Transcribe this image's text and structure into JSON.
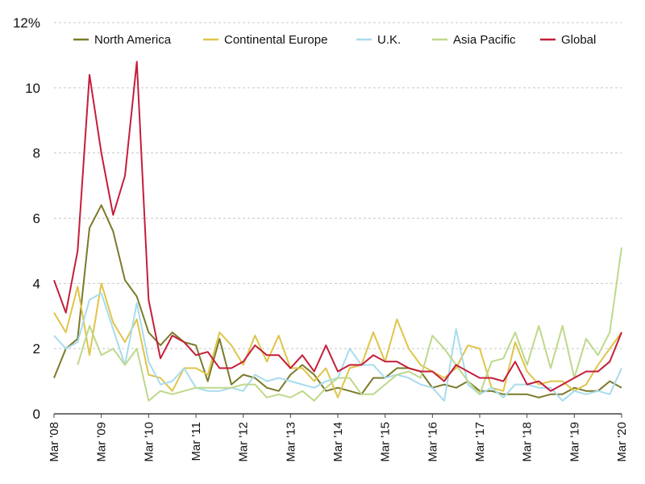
{
  "chart_data": {
    "type": "line",
    "title": "",
    "xlabel": "",
    "ylabel": "",
    "ylim": [
      0,
      12
    ],
    "y_ticks": [
      0,
      2,
      4,
      6,
      8,
      10,
      12
    ],
    "y_tick_labels": [
      "0",
      "2",
      "4",
      "6",
      "8",
      "10",
      "12%"
    ],
    "grid": "horizontal dashed",
    "legend_position": "top",
    "x_tick_labels": [
      "Mar '08",
      "Mar '09",
      "Mar '10",
      "Mar '11",
      "Mar '12",
      "Mar '13",
      "Mar '14",
      "Mar '15",
      "Mar '16",
      "Mar '17",
      "Mar '18",
      "Mar '19",
      "Mar '20"
    ],
    "x_tick_index": [
      0,
      4,
      8,
      12,
      16,
      20,
      24,
      28,
      32,
      36,
      40,
      44,
      48
    ],
    "series": [
      {
        "name": "North America",
        "color": "#7a7a2a",
        "values": [
          1.1,
          2.0,
          2.3,
          5.7,
          6.4,
          5.6,
          4.1,
          3.6,
          2.5,
          2.1,
          2.5,
          2.2,
          2.1,
          1.0,
          2.3,
          0.9,
          1.2,
          1.1,
          0.8,
          0.7,
          1.2,
          1.5,
          1.2,
          0.7,
          0.8,
          0.7,
          0.6,
          1.1,
          1.1,
          1.4,
          1.4,
          1.3,
          0.8,
          0.9,
          0.8,
          1.0,
          0.7,
          0.7,
          0.6,
          0.6,
          0.6,
          0.5,
          0.6,
          0.6,
          0.8,
          0.7,
          0.7,
          1.0,
          0.8
        ]
      },
      {
        "name": "Continental Europe",
        "color": "#e0c44a",
        "values": [
          3.1,
          2.5,
          3.9,
          1.8,
          4.0,
          2.8,
          2.2,
          2.9,
          1.2,
          1.1,
          0.7,
          1.4,
          1.4,
          1.2,
          2.5,
          2.1,
          1.5,
          2.4,
          1.6,
          2.4,
          1.4,
          1.4,
          1.0,
          1.4,
          0.5,
          1.4,
          1.5,
          2.5,
          1.6,
          2.9,
          2.0,
          1.5,
          1.3,
          1.1,
          1.4,
          2.1,
          2.0,
          0.8,
          0.7,
          2.2,
          1.3,
          0.9,
          1.0,
          1.0,
          0.7,
          0.9,
          1.5,
          2.0,
          2.5
        ]
      },
      {
        "name": "U.K.",
        "color": "#a8dcec",
        "values": [
          2.4,
          2.0,
          2.2,
          3.5,
          3.7,
          2.6,
          1.5,
          3.4,
          1.6,
          0.9,
          1.0,
          1.4,
          0.8,
          0.7,
          0.7,
          0.8,
          0.7,
          1.2,
          1.0,
          1.1,
          1.0,
          0.9,
          0.8,
          1.0,
          1.1,
          2.0,
          1.5,
          1.5,
          1.1,
          1.2,
          1.1,
          0.9,
          0.8,
          0.4,
          2.6,
          0.9,
          0.6,
          0.8,
          0.5,
          0.9,
          0.9,
          0.8,
          0.8,
          0.4,
          0.7,
          0.6,
          0.7,
          0.6,
          1.4
        ]
      },
      {
        "name": "Asia Pacific",
        "color": "#bed88a",
        "values": [
          null,
          null,
          1.5,
          2.7,
          1.8,
          2.0,
          1.5,
          2.0,
          0.4,
          0.7,
          0.6,
          0.7,
          0.8,
          0.8,
          0.8,
          0.8,
          0.9,
          0.9,
          0.5,
          0.6,
          0.5,
          0.7,
          0.4,
          0.8,
          1.1,
          1.1,
          0.6,
          0.6,
          0.9,
          1.2,
          1.3,
          1.1,
          2.4,
          2.0,
          1.5,
          1.0,
          0.6,
          1.6,
          1.7,
          2.5,
          1.5,
          2.7,
          1.4,
          2.7,
          1.1,
          2.3,
          1.8,
          2.5,
          5.1
        ]
      },
      {
        "name": "Global",
        "color": "#c41e3a",
        "values": [
          4.1,
          3.1,
          5.0,
          10.4,
          8.0,
          6.1,
          7.3,
          10.8,
          3.5,
          1.7,
          2.4,
          2.2,
          1.8,
          1.9,
          1.4,
          1.4,
          1.6,
          2.1,
          1.8,
          1.8,
          1.4,
          1.8,
          1.3,
          2.1,
          1.3,
          1.5,
          1.5,
          1.8,
          1.6,
          1.6,
          1.4,
          1.3,
          1.3,
          1.0,
          1.5,
          1.3,
          1.1,
          1.1,
          1.0,
          1.6,
          0.9,
          1.0,
          0.7,
          0.9,
          1.1,
          1.3,
          1.3,
          1.6,
          2.5
        ]
      }
    ]
  }
}
